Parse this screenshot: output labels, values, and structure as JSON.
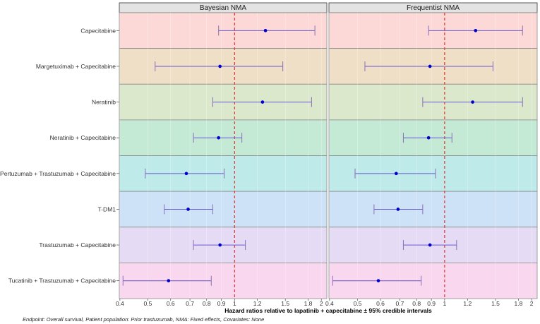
{
  "chart_data": {
    "type": "forest",
    "xscale": "log",
    "xlim": [
      0.398,
      2.09
    ],
    "xlabel": "Hazard ratios relative to lapatinib + capecitabine ± 95% credible intervals",
    "xticks": [
      0.4,
      0.5,
      0.6,
      0.7,
      0.8,
      0.9,
      1,
      1.2,
      1.5,
      1.8,
      2
    ],
    "reference_line": 1,
    "reference_color": "#e8322e",
    "point_color": "#0000cc",
    "interval_color": "#6a5acd",
    "grid": true,
    "caption": "Endpoint: Overall survival,  Patient population: Prior trastuzumab,  NMA: Fixed effects,  Covariates: None",
    "categories": [
      "Capecitabine",
      "Margetuximab + Capecitabine",
      "Neratinib",
      "Neratinib  + Capecitabine",
      "Pertuzumab + Trastuzumab + Capecitabine",
      "T-DM1",
      "Trastuzumab + Capecitabine",
      "Tucatinib + Trastuzumab + Capecitabine"
    ],
    "row_colors": [
      "#fcd9d6",
      "#f0dfc7",
      "#dce8cc",
      "#c4ead6",
      "#bfeaea",
      "#cde2f6",
      "#e5dbf4",
      "#f9d7ee"
    ],
    "panels": [
      {
        "title": "Bayesian NMA",
        "estimates": [
          1.28,
          0.89,
          1.25,
          0.88,
          0.68,
          0.69,
          0.89,
          0.59
        ],
        "lower": [
          0.88,
          0.53,
          0.84,
          0.72,
          0.49,
          0.57,
          0.72,
          0.41
        ],
        "upper": [
          1.9,
          1.47,
          1.85,
          1.06,
          0.92,
          0.84,
          1.09,
          0.83
        ]
      },
      {
        "title": "Frequentist NMA",
        "estimates": [
          1.28,
          0.89,
          1.25,
          0.88,
          0.68,
          0.69,
          0.89,
          0.59
        ],
        "lower": [
          0.88,
          0.53,
          0.84,
          0.72,
          0.49,
          0.57,
          0.72,
          0.41
        ],
        "upper": [
          1.86,
          1.47,
          1.86,
          1.06,
          0.93,
          0.84,
          1.1,
          0.83
        ]
      }
    ]
  }
}
